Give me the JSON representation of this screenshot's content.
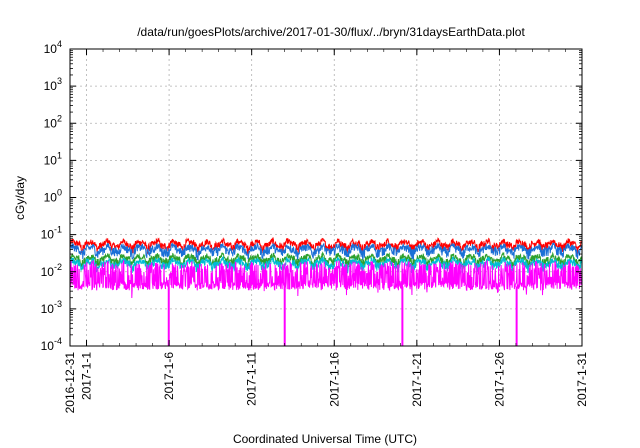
{
  "chart_data": {
    "type": "line",
    "title": "/data/run/goesPlots/archive/2017-01-30/flux/../bryn/31daysEarthData.plot",
    "xlabel": "Coordinated Universal Time (UTC)",
    "ylabel": "cGy/day",
    "y_scale": "log",
    "ylim": [
      0.0001,
      10000
    ],
    "xlim": [
      "2016-12-31",
      "2017-01-31"
    ],
    "grid": true,
    "legend": "none",
    "y_ticks": [
      {
        "value": 0.0001,
        "base": "10",
        "exp": "-4"
      },
      {
        "value": 0.001,
        "base": "10",
        "exp": "-3"
      },
      {
        "value": 0.01,
        "base": "10",
        "exp": "-2"
      },
      {
        "value": 0.1,
        "base": "10",
        "exp": "-1"
      },
      {
        "value": 1,
        "base": "10",
        "exp": "0"
      },
      {
        "value": 10,
        "base": "10",
        "exp": "1"
      },
      {
        "value": 100,
        "base": "10",
        "exp": "2"
      },
      {
        "value": 1000,
        "base": "10",
        "exp": "3"
      },
      {
        "value": 10000,
        "base": "10",
        "exp": "4"
      }
    ],
    "x_ticks": [
      {
        "date": "2016-12-31",
        "label": "2016-12-31"
      },
      {
        "date": "2017-01-01",
        "label": "2017-1-1"
      },
      {
        "date": "2017-01-06",
        "label": "2017-1-6"
      },
      {
        "date": "2017-01-11",
        "label": "2017-1-11"
      },
      {
        "date": "2017-01-16",
        "label": "2017-1-16"
      },
      {
        "date": "2017-01-21",
        "label": "2017-1-21"
      },
      {
        "date": "2017-01-26",
        "label": "2017-1-26"
      },
      {
        "date": "2017-01-31",
        "label": "2017-1-31"
      }
    ],
    "series": [
      {
        "color": "#ff0000",
        "base": 0.055,
        "spread": 0.012
      },
      {
        "color": "#1a6fd6",
        "base": 0.04,
        "spread": 0.01
      },
      {
        "color": "#2ca02c",
        "base": 0.022,
        "spread": 0.005
      },
      {
        "color": "#00bcd4",
        "base": 0.017,
        "spread": 0.004
      },
      {
        "color": "#ff00ff",
        "base": 0.011,
        "spread": 0.007,
        "low": 0.0035
      }
    ],
    "dropouts": [
      "2017-01-05T23:30",
      "2017-01-13T00:00",
      "2017-01-20T03:00",
      "2017-01-27T01:00"
    ],
    "dropout_value": 0.0001
  }
}
